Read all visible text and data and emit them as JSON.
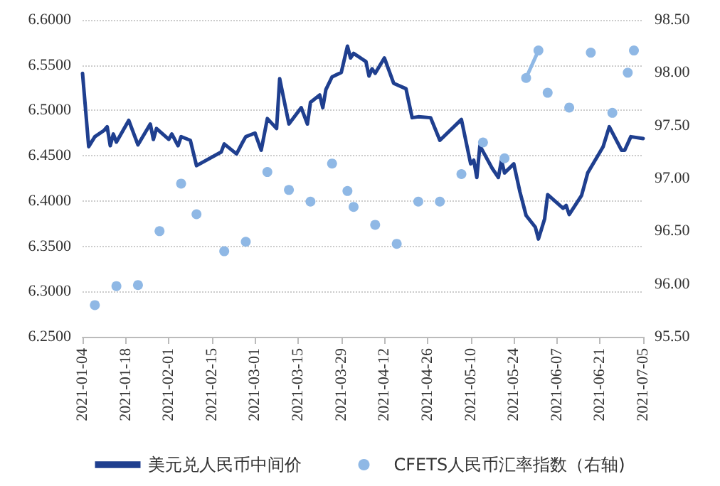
{
  "chart_data": {
    "type": "line",
    "xlim": [
      "2021-01-04",
      "2021-07-05"
    ],
    "xticks": [
      "2021-01-04",
      "2021-01-18",
      "2021-02-01",
      "2021-02-15",
      "2021-03-01",
      "2021-03-15",
      "2021-03-29",
      "2021-04-12",
      "2021-04-26",
      "2021-05-10",
      "2021-05-24",
      "2021-06-07",
      "2021-06-21",
      "2021-07-05"
    ],
    "ylim": [
      6.25,
      6.6
    ],
    "yticks": [
      {
        "value": 6.25,
        "label": "6.2500"
      },
      {
        "value": 6.3,
        "label": "6.3000"
      },
      {
        "value": 6.35,
        "label": "6.3500"
      },
      {
        "value": 6.4,
        "label": "6.4000"
      },
      {
        "value": 6.45,
        "label": "6.4500"
      },
      {
        "value": 6.5,
        "label": "6.5000"
      },
      {
        "value": 6.55,
        "label": "6.5500"
      },
      {
        "value": 6.6,
        "label": "6.6000"
      }
    ],
    "y2lim": [
      95.5,
      98.5
    ],
    "y2ticks": [
      {
        "value": 95.5,
        "label": "95.50"
      },
      {
        "value": 96,
        "label": "96.00"
      },
      {
        "value": 96.5,
        "label": "96.50"
      },
      {
        "value": 97,
        "label": "97.00"
      },
      {
        "value": 97.5,
        "label": "97.50"
      },
      {
        "value": 98,
        "label": "98.00"
      },
      {
        "value": 98.5,
        "label": "98.50"
      }
    ],
    "grid": "y",
    "legend": "bottom",
    "series": [
      {
        "name": "美元兑人民币中间价",
        "color": "#1f3f8f",
        "marker": "none",
        "x": [
          "2021-01-04",
          "2021-01-06",
          "2021-01-08",
          "2021-01-11",
          "2021-01-12",
          "2021-01-13",
          "2021-01-14",
          "2021-01-15",
          "2021-01-19",
          "2021-01-22",
          "2021-01-26",
          "2021-01-27",
          "2021-01-28",
          "2021-02-01",
          "2021-02-02",
          "2021-02-04",
          "2021-02-05",
          "2021-02-08",
          "2021-02-10",
          "2021-02-18",
          "2021-02-19",
          "2021-02-23",
          "2021-02-25",
          "2021-02-26",
          "2021-03-01",
          "2021-03-03",
          "2021-03-05",
          "2021-03-08",
          "2021-03-09",
          "2021-03-12",
          "2021-03-16",
          "2021-03-18",
          "2021-03-19",
          "2021-03-22",
          "2021-03-23",
          "2021-03-24",
          "2021-03-26",
          "2021-03-29",
          "2021-03-31",
          "2021-04-01",
          "2021-04-02",
          "2021-04-06",
          "2021-04-07",
          "2021-04-08",
          "2021-04-09",
          "2021-04-12",
          "2021-04-15",
          "2021-04-19",
          "2021-04-21",
          "2021-04-23",
          "2021-04-27",
          "2021-04-30",
          "2021-05-07",
          "2021-05-10",
          "2021-05-11",
          "2021-05-12",
          "2021-05-13",
          "2021-05-17",
          "2021-05-19",
          "2021-05-20",
          "2021-05-21",
          "2021-05-24",
          "2021-05-26",
          "2021-05-28",
          "2021-05-31",
          "2021-06-01",
          "2021-06-03",
          "2021-06-04",
          "2021-06-09",
          "2021-06-10",
          "2021-06-11",
          "2021-06-15",
          "2021-06-17",
          "2021-06-22",
          "2021-06-24",
          "2021-06-28",
          "2021-06-29",
          "2021-07-01",
          "2021-07-05"
        ],
        "values": [
          6.541,
          6.46,
          6.471,
          6.478,
          6.482,
          6.461,
          6.474,
          6.465,
          6.489,
          6.462,
          6.485,
          6.468,
          6.48,
          6.468,
          6.474,
          6.461,
          6.471,
          6.467,
          6.439,
          6.454,
          6.463,
          6.452,
          6.465,
          6.471,
          6.475,
          6.456,
          6.491,
          6.48,
          6.535,
          6.485,
          6.503,
          6.485,
          6.509,
          6.517,
          6.503,
          6.523,
          6.537,
          6.542,
          6.571,
          6.558,
          6.563,
          6.554,
          6.538,
          6.546,
          6.541,
          6.558,
          6.53,
          6.524,
          6.492,
          6.493,
          6.492,
          6.467,
          6.49,
          6.441,
          6.445,
          6.426,
          6.461,
          6.436,
          6.426,
          6.445,
          6.431,
          6.441,
          6.41,
          6.384,
          6.371,
          6.358,
          6.38,
          6.407,
          6.392,
          6.395,
          6.385,
          6.406,
          6.431,
          6.46,
          6.482,
          6.456,
          6.456,
          6.471,
          6.469
        ]
      },
      {
        "name": "CFETS人民币汇率指数（右轴)",
        "color": "#8fb8e5",
        "marker": "circle",
        "axis": "y2",
        "x": [
          "2021-01-08",
          "2021-01-11",
          "2021-01-15",
          "2021-01-18",
          "2021-01-22",
          "2021-01-25",
          "2021-01-29",
          "2021-02-01",
          "2021-02-05",
          "2021-02-08",
          "2021-02-10",
          "2021-02-15",
          "2021-02-19",
          "2021-02-22",
          "2021-02-26",
          "2021-03-01",
          "2021-03-05",
          "2021-03-08",
          "2021-03-12",
          "2021-03-15",
          "2021-03-19",
          "2021-03-22",
          "2021-03-26",
          "2021-03-29",
          "2021-03-31",
          "2021-04-01",
          "2021-04-02",
          "2021-04-06",
          "2021-04-09",
          "2021-04-12",
          "2021-04-16",
          "2021-04-19",
          "2021-04-23",
          "2021-04-26",
          "2021-04-30",
          "2021-05-04",
          "2021-05-07",
          "2021-05-10",
          "2021-05-14",
          "2021-05-17",
          "2021-05-21",
          "2021-05-24",
          "2021-05-28",
          "2021-06-01",
          "2021-06-02",
          "2021-06-04",
          "2021-06-07",
          "2021-06-11",
          "2021-06-14",
          "2021-06-18",
          "2021-06-21",
          "2021-06-25",
          "2021-06-28",
          "2021-06-30",
          "2021-07-01",
          "2021-07-02"
        ],
        "values": [
          95.8,
          null,
          95.98,
          null,
          95.99,
          null,
          96.5,
          null,
          96.95,
          null,
          96.66,
          null,
          96.31,
          null,
          96.4,
          null,
          97.06,
          null,
          96.89,
          null,
          96.78,
          null,
          97.14,
          null,
          96.88,
          null,
          96.73,
          null,
          96.56,
          null,
          96.38,
          null,
          96.78,
          null,
          96.78,
          null,
          97.04,
          null,
          97.34,
          null,
          97.19,
          null,
          97.95,
          98.21,
          null,
          97.81,
          null,
          97.67,
          null,
          98.19,
          null,
          97.62,
          null,
          98.0,
          null,
          98.21
        ]
      }
    ]
  }
}
